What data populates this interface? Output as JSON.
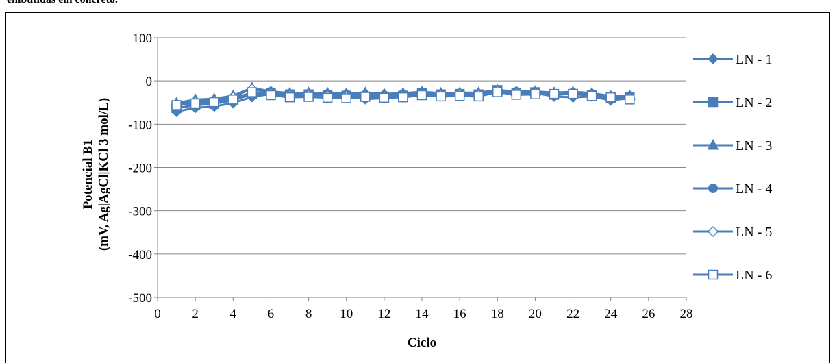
{
  "caption": "embutidas em concreto.",
  "chart_data": {
    "type": "line",
    "xlabel": "Ciclo",
    "ylabel_line1": "Potencial B1",
    "ylabel_line2": "(mV, Ag|AgCl|KCl 3 mol/L)",
    "xlim": [
      0,
      28
    ],
    "ylim": [
      -500,
      100
    ],
    "xticks": [
      0,
      2,
      4,
      6,
      8,
      10,
      12,
      14,
      16,
      18,
      20,
      22,
      24,
      26,
      28
    ],
    "yticks": [
      100,
      0,
      -100,
      -200,
      -300,
      -400,
      -500
    ],
    "grid": "horizontal",
    "legend_position": "right",
    "color": "#4a7ebb",
    "x": [
      1,
      2,
      3,
      4,
      5,
      6,
      7,
      8,
      9,
      10,
      11,
      12,
      13,
      14,
      15,
      16,
      17,
      18,
      19,
      20,
      21,
      22,
      23,
      24,
      25
    ],
    "series": [
      {
        "name": "LN - 1",
        "marker": "diamond",
        "values": [
          -71,
          -62,
          -59,
          -51,
          -37,
          -30,
          -33,
          -33,
          -32,
          -36,
          -42,
          -40,
          -37,
          -29,
          -32,
          -31,
          -30,
          -23,
          -29,
          -28,
          -36,
          -38,
          -36,
          -45,
          -40
        ]
      },
      {
        "name": "LN - 2",
        "marker": "square",
        "values": [
          -63,
          -56,
          -53,
          -45,
          -31,
          -28,
          -31,
          -31,
          -33,
          -34,
          -36,
          -37,
          -34,
          -28,
          -31,
          -30,
          -31,
          -21,
          -27,
          -26,
          -32,
          -30,
          -33,
          -40,
          -37
        ]
      },
      {
        "name": "LN - 3",
        "marker": "triangle",
        "values": [
          -51,
          -43,
          -41,
          -34,
          -16,
          -24,
          -28,
          -27,
          -28,
          -29,
          -27,
          -30,
          -28,
          -25,
          -28,
          -27,
          -27,
          -21,
          -24,
          -24,
          -27,
          -25,
          -28,
          -35,
          -34
        ]
      },
      {
        "name": "LN - 4",
        "marker": "circle",
        "values": [
          -57,
          -50,
          -47,
          -39,
          -28,
          -25,
          -31,
          -30,
          -30,
          -32,
          -32,
          -33,
          -31,
          -26,
          -30,
          -29,
          -30,
          -22,
          -25,
          -25,
          -30,
          -27,
          -30,
          -38,
          -35
        ]
      },
      {
        "name": "LN - 5",
        "marker": "diamond-open",
        "values": [
          -55,
          -48,
          -44,
          -37,
          -18,
          -28,
          -33,
          -33,
          -34,
          -36,
          -35,
          -36,
          -33,
          -30,
          -33,
          -31,
          -32,
          -22,
          -28,
          -28,
          -31,
          -30,
          -32,
          -40,
          -40
        ]
      },
      {
        "name": "LN - 6",
        "marker": "square-open",
        "values": [
          -56,
          -52,
          -49,
          -43,
          -26,
          -33,
          -38,
          -37,
          -39,
          -40,
          -37,
          -39,
          -38,
          -33,
          -36,
          -35,
          -36,
          -26,
          -32,
          -31,
          -30,
          -30,
          -35,
          -38,
          -43
        ]
      }
    ]
  }
}
